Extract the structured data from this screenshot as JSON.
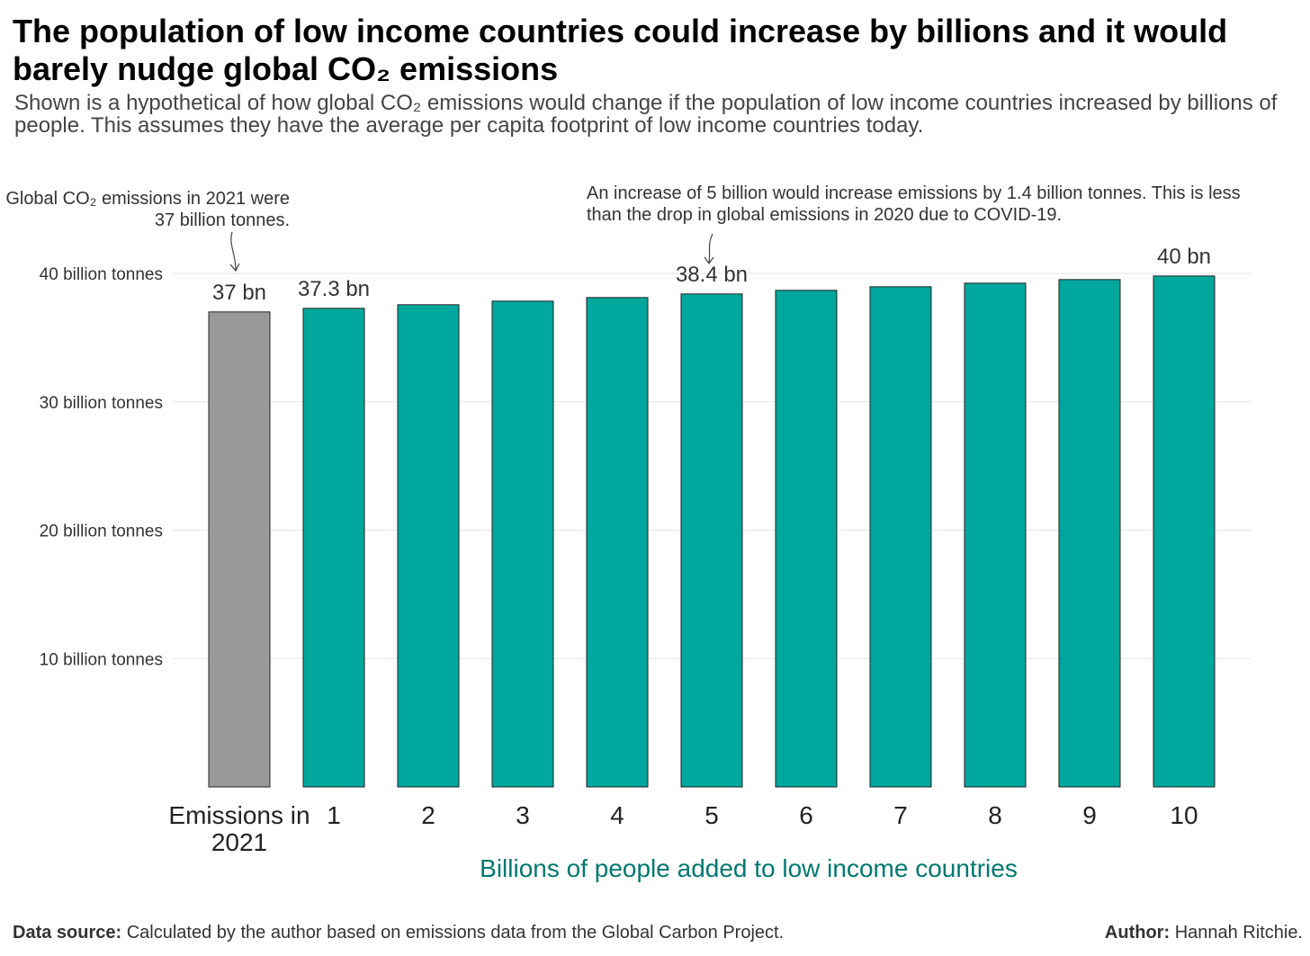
{
  "chart_data": {
    "type": "bar",
    "title": "The population of low income countries could increase by billions and it would barely nudge global CO₂ emissions",
    "subtitle": "Shown is a hypothetical of how global CO₂ emissions would change if the population of low income countries increased by billions of people. This assumes they have the average per capita footprint of low income countries today.",
    "annotations": [
      "Global CO₂ emissions in 2021 were 37 billion tonnes.",
      "An increase of 5 billion would increase emissions by 1.4 billion tonnes. This is less than the drop in global emissions in 2020 due to COVID-19."
    ],
    "x_label": "Billions of people added to low income countries",
    "categories": [
      "Emissions in 2021",
      "1",
      "2",
      "3",
      "4",
      "5",
      "6",
      "7",
      "8",
      "9",
      "10"
    ],
    "values": [
      37,
      37.28,
      37.56,
      37.84,
      38.12,
      38.4,
      38.68,
      38.96,
      39.24,
      39.52,
      39.8
    ],
    "value_labels": [
      "37 bn",
      "37.3 bn",
      null,
      null,
      null,
      "38.4 bn",
      null,
      null,
      null,
      null,
      "40 bn"
    ],
    "colors": [
      "#999999",
      "#00a79c",
      "#00a79c",
      "#00a79c",
      "#00a79c",
      "#00a79c",
      "#00a79c",
      "#00a79c",
      "#00a79c",
      "#00a79c",
      "#00a79c"
    ],
    "ylim": [
      0,
      41
    ],
    "yticks": [
      {
        "value": 10,
        "label": "10 billion tonnes"
      },
      {
        "value": 20,
        "label": "20 billion tonnes"
      },
      {
        "value": 30,
        "label": "30 billion tonnes"
      },
      {
        "value": 40,
        "label": "40 billion tonnes"
      }
    ],
    "grid": true,
    "source_label": "Data source:",
    "source_text": "Calculated by the author based on emissions data from the Global Carbon Project.",
    "author_label": "Author:",
    "author_name": "Hannah Ritchie."
  }
}
